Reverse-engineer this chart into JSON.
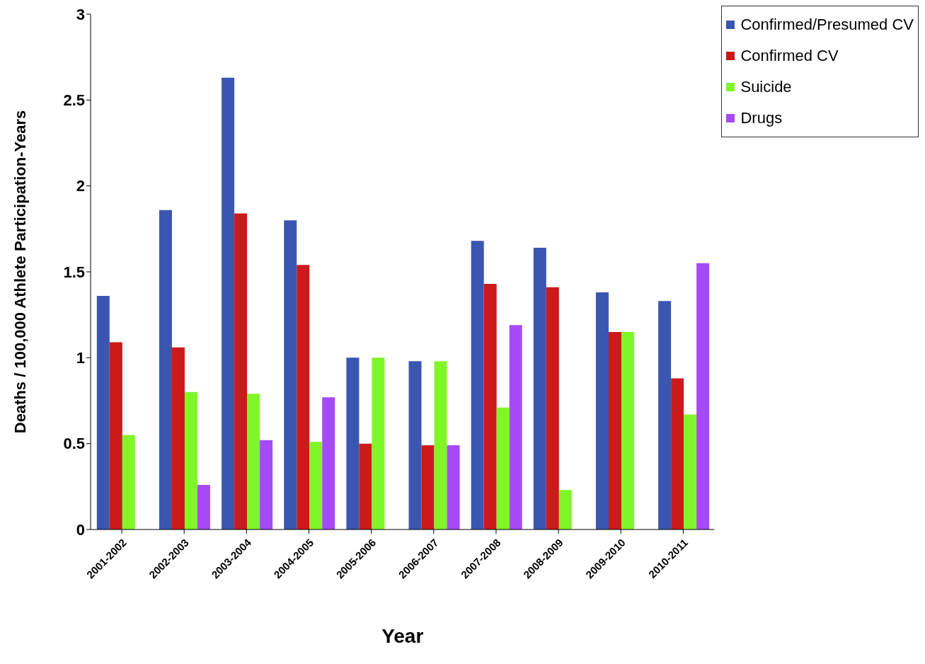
{
  "chart_data": {
    "type": "bar",
    "xlabel": "Year",
    "ylabel": "Deaths / 100,000 Athlete  Participation-Years",
    "categories": [
      "2001-2002",
      "2002-2003",
      "2003-2004",
      "2004-2005",
      "2005-2006",
      "2006-2007",
      "2007-2008",
      "2008-2009",
      "2009-2010",
      "2010-2011"
    ],
    "series": [
      {
        "name": "Confirmed/Presumed CV",
        "color": "#3a56b0",
        "values": [
          1.36,
          1.86,
          2.63,
          1.8,
          1.0,
          0.98,
          1.68,
          1.64,
          1.38,
          1.33
        ]
      },
      {
        "name": "Confirmed CV",
        "color": "#cc1a1a",
        "values": [
          1.09,
          1.06,
          1.84,
          1.54,
          0.5,
          0.49,
          1.43,
          1.41,
          1.15,
          0.88
        ]
      },
      {
        "name": "Suicide",
        "color": "#80f52a",
        "values": [
          0.55,
          0.8,
          0.79,
          0.51,
          1.0,
          0.98,
          0.71,
          0.23,
          1.15,
          0.67
        ]
      },
      {
        "name": "Drugs",
        "color": "#a64af5",
        "values": [
          null,
          0.26,
          0.52,
          0.77,
          null,
          0.49,
          1.19,
          null,
          null,
          1.55
        ]
      }
    ],
    "ylim": [
      0,
      3
    ],
    "yticks": [
      0,
      0.5,
      1,
      1.5,
      2,
      2.5,
      3
    ],
    "grid": false,
    "legend": "top right"
  }
}
